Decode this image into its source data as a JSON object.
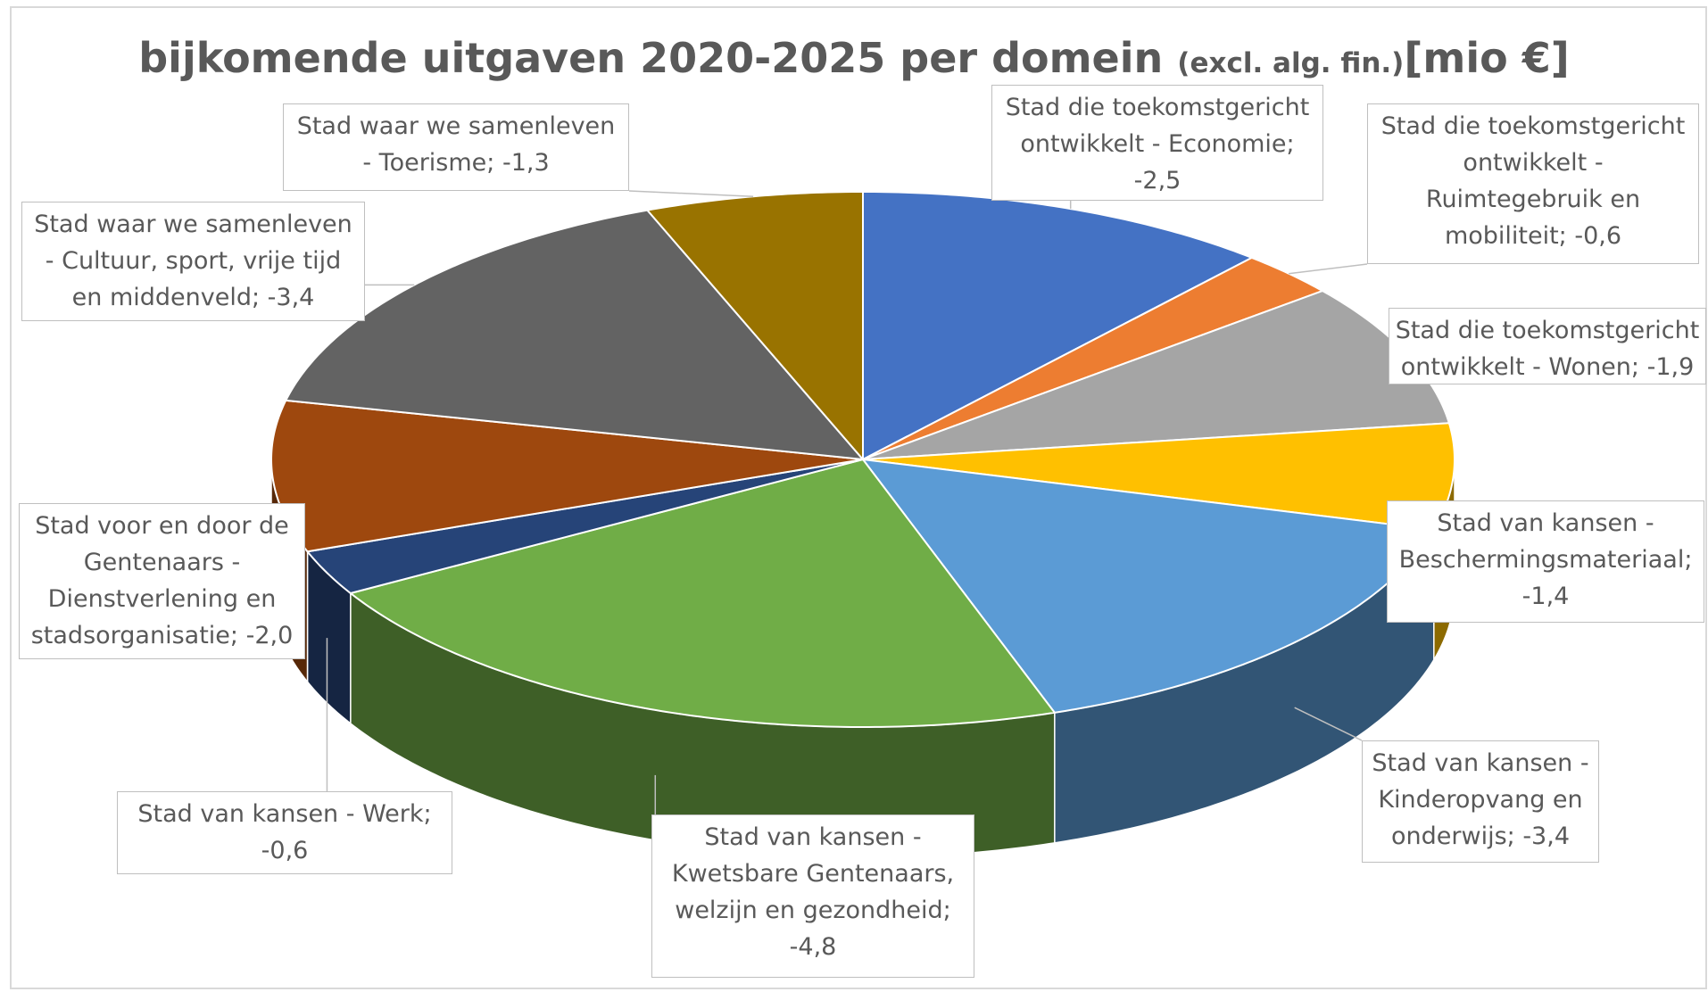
{
  "chart_data": {
    "type": "pie",
    "title": "bijkomende uitgaven 2020-2025 per domein",
    "subtitle": "(excl. alg. fin.)",
    "unit": "[mio €]",
    "values": [
      -2.5,
      -0.6,
      -1.9,
      -1.4,
      -3.4,
      -4.8,
      -0.6,
      -2.0,
      -3.4,
      -1.3
    ],
    "value_labels": [
      "Stad die toekomstgericht ontwikkelt - Economie; -2,5",
      "Stad die toekomstgericht ontwikkelt - Ruimtegebruik en mobiliteit; -0,6",
      "Stad die toekomstgericht ontwikkelt - Wonen; -1,9",
      "Stad van kansen - Beschermingsmateriaal; -1,4",
      "Stad van kansen - Kinderopvang en onderwijs; -3,4",
      "Stad van kansen - Kwetsbare Gentenaars, welzijn en gezondheid; -4,8",
      "Stad van kansen - Werk; -0,6",
      "Stad voor en door de Gentenaars - Dienstverlening en stadsorganisatie; -2,0",
      "Stad waar we samenleven - Cultuur, sport, vrije tijd en middenveld; -3,4",
      "Stad waar we samenleven - Toerisme; -1,3"
    ],
    "colors": [
      "#4472c4",
      "#ed7d31",
      "#a5a5a5",
      "#ffc000",
      "#5b9bd5",
      "#70ad47",
      "#264478",
      "#9e480e",
      "#636363",
      "#997300"
    ]
  }
}
